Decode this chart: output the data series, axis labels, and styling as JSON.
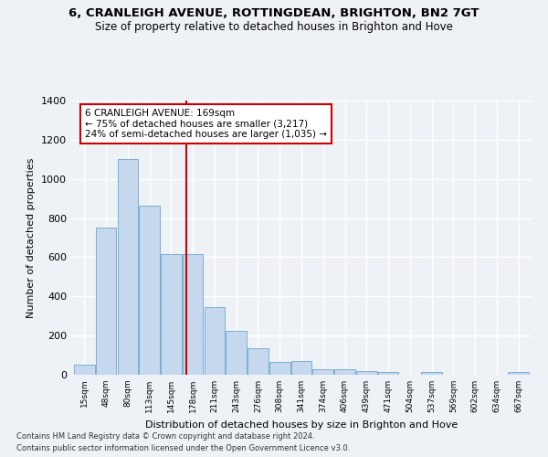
{
  "title": "6, CRANLEIGH AVENUE, ROTTINGDEAN, BRIGHTON, BN2 7GT",
  "subtitle": "Size of property relative to detached houses in Brighton and Hove",
  "xlabel": "Distribution of detached houses by size in Brighton and Hove",
  "ylabel": "Number of detached properties",
  "footnote1": "Contains HM Land Registry data © Crown copyright and database right 2024.",
  "footnote2": "Contains public sector information licensed under the Open Government Licence v3.0.",
  "bar_labels": [
    "15sqm",
    "48sqm",
    "80sqm",
    "113sqm",
    "145sqm",
    "178sqm",
    "211sqm",
    "243sqm",
    "276sqm",
    "308sqm",
    "341sqm",
    "374sqm",
    "406sqm",
    "439sqm",
    "471sqm",
    "504sqm",
    "537sqm",
    "569sqm",
    "602sqm",
    "634sqm",
    "667sqm"
  ],
  "bar_values": [
    50,
    750,
    1100,
    865,
    615,
    615,
    345,
    225,
    135,
    65,
    70,
    30,
    30,
    20,
    15,
    0,
    12,
    0,
    0,
    0,
    12
  ],
  "bar_color": "#c5d8ed",
  "bar_edgecolor": "#7bafd4",
  "background_color": "#eef2f7",
  "grid_color": "#ffffff",
  "annotation_text": "6 CRANLEIGH AVENUE: 169sqm\n← 75% of detached houses are smaller (3,217)\n24% of semi-detached houses are larger (1,035) →",
  "annotation_box_color": "#ffffff",
  "annotation_box_edgecolor": "#cc0000",
  "vline_color": "#cc0000",
  "ylim": [
    0,
    1400
  ],
  "yticks": [
    0,
    200,
    400,
    600,
    800,
    1000,
    1200,
    1400
  ]
}
